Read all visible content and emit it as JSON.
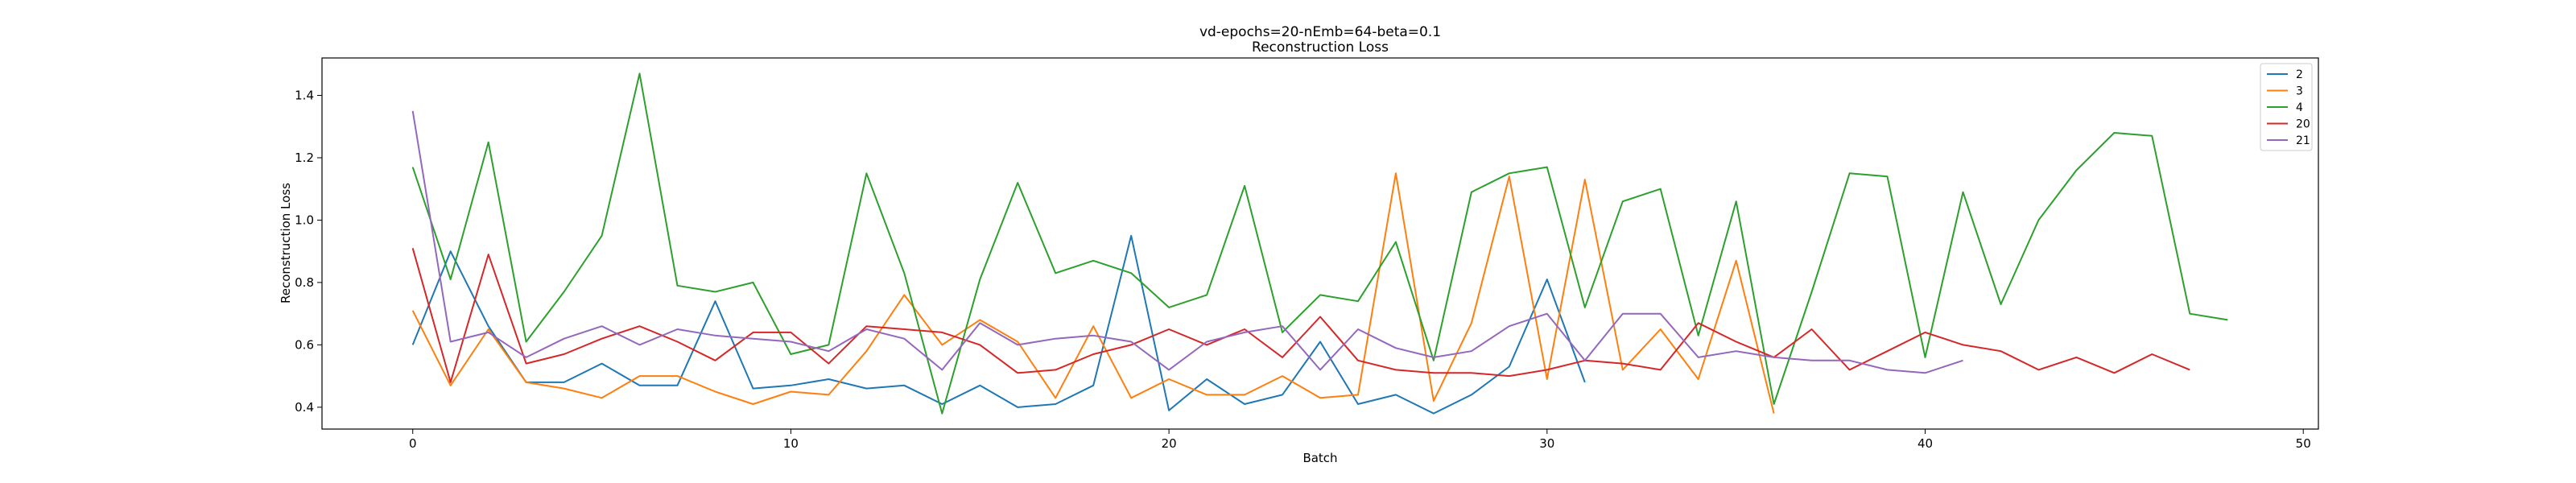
{
  "chart_data": {
    "type": "line",
    "title": "vd-epochs=20-nEmb=64-beta=0.1",
    "subtitle": "Reconstruction Loss",
    "xlabel": "Batch",
    "ylabel": "Reconstruction Loss",
    "xlim": [
      -2.4,
      50.4
    ],
    "ylim": [
      0.33,
      1.52
    ],
    "xticks": [
      0,
      10,
      20,
      30,
      40,
      50
    ],
    "yticks": [
      0.4,
      0.6,
      0.8,
      1.0,
      1.2,
      1.4
    ],
    "xtick_labels": [
      "0",
      "10",
      "20",
      "30",
      "40",
      "50"
    ],
    "ytick_labels": [
      "0.4",
      "0.6",
      "0.8",
      "1.0",
      "1.2",
      "1.4"
    ],
    "grid": false,
    "legend_position": "top-right",
    "series": [
      {
        "name": "2",
        "color": "#1f77b4",
        "values": [
          0.6,
          0.9,
          0.66,
          0.48,
          0.48,
          0.54,
          0.47,
          0.47,
          0.74,
          0.46,
          0.47,
          0.49,
          0.46,
          0.47,
          0.41,
          0.47,
          0.4,
          0.41,
          0.47,
          0.95,
          0.39,
          0.49,
          0.41,
          0.44,
          0.61,
          0.41,
          0.44,
          0.38,
          0.44,
          0.53,
          0.81,
          0.48
        ]
      },
      {
        "name": "3",
        "color": "#ff7f0e",
        "values": [
          0.71,
          0.47,
          0.65,
          0.48,
          0.46,
          0.43,
          0.5,
          0.5,
          0.45,
          0.41,
          0.45,
          0.44,
          0.58,
          0.76,
          0.6,
          0.68,
          0.61,
          0.43,
          0.66,
          0.43,
          0.49,
          0.44,
          0.44,
          0.5,
          0.43,
          0.44,
          1.15,
          0.42,
          0.67,
          1.14,
          0.49,
          1.13,
          0.52,
          0.65,
          0.49,
          0.87,
          0.38
        ]
      },
      {
        "name": "4",
        "color": "#2ca02c",
        "values": [
          1.17,
          0.81,
          1.25,
          0.61,
          0.77,
          0.95,
          1.47,
          0.79,
          0.77,
          0.8,
          0.57,
          0.6,
          1.15,
          0.83,
          0.38,
          0.81,
          1.12,
          0.83,
          0.87,
          0.83,
          0.72,
          0.76,
          1.11,
          0.64,
          0.76,
          0.74,
          0.93,
          0.55,
          1.09,
          1.15,
          1.17,
          0.72,
          1.06,
          1.1,
          0.63,
          1.06,
          0.41,
          0.77,
          1.15,
          1.14,
          0.56,
          1.09,
          0.73,
          1.0,
          1.16,
          1.28,
          1.27,
          0.7,
          0.68
        ]
      },
      {
        "name": "20",
        "color": "#d62728",
        "values": [
          0.91,
          0.48,
          0.89,
          0.54,
          0.57,
          0.62,
          0.66,
          0.61,
          0.55,
          0.64,
          0.64,
          0.54,
          0.66,
          0.65,
          0.64,
          0.6,
          0.51,
          0.52,
          0.57,
          0.6,
          0.65,
          0.6,
          0.65,
          0.56,
          0.69,
          0.55,
          0.52,
          0.51,
          0.51,
          0.5,
          0.52,
          0.55,
          0.54,
          0.52,
          0.67,
          0.61,
          0.56,
          0.65,
          0.52,
          0.58,
          0.64,
          0.6,
          0.58,
          0.52,
          0.56,
          0.51,
          0.57,
          0.52
        ]
      },
      {
        "name": "21",
        "color": "#9467bd",
        "values": [
          1.35,
          0.61,
          0.64,
          0.56,
          0.62,
          0.66,
          0.6,
          0.65,
          0.63,
          0.62,
          0.61,
          0.58,
          0.65,
          0.62,
          0.52,
          0.67,
          0.6,
          0.62,
          0.63,
          0.61,
          0.52,
          0.61,
          0.64,
          0.66,
          0.52,
          0.65,
          0.59,
          0.56,
          0.58,
          0.66,
          0.7,
          0.55,
          0.7,
          0.7,
          0.56,
          0.58,
          0.56,
          0.55,
          0.55,
          0.52,
          0.51,
          0.55
        ]
      }
    ]
  }
}
